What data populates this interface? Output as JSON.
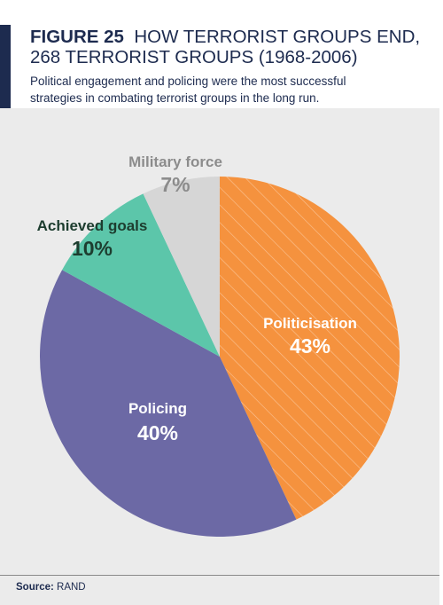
{
  "figure": {
    "label": "FIGURE 25",
    "title_line1": "HOW TERRORIST GROUPS END,",
    "title_line2": "268 TERRORIST GROUPS (1968-2006)",
    "subtitle_line1": "Political engagement and policing were the most successful",
    "subtitle_line2": "strategies in combating terrorist groups in the long run.",
    "source_label": "Source:",
    "source_value": "RAND"
  },
  "colors": {
    "header_text": "#1d2b4f",
    "politicisation": "#f5923e",
    "policing": "#6c69a5",
    "achieved_goals": "#5cc6aa",
    "military_force": "#d6d6d6",
    "panel": "#ebebeb"
  },
  "chart_data": {
    "type": "pie",
    "title": "HOW TERRORIST GROUPS END, 268 TERRORIST GROUPS (1968-2006)",
    "start": "12 o'clock",
    "direction": "clockwise",
    "slices": [
      {
        "label": "Politicisation",
        "value": 43,
        "display": "43%",
        "color": "#f5923e",
        "pattern": "diagonal-hatch",
        "label_color": "#ffffff"
      },
      {
        "label": "Policing",
        "value": 40,
        "display": "40%",
        "color": "#6c69a5",
        "pattern": "none",
        "label_color": "#ffffff"
      },
      {
        "label": "Achieved goals",
        "value": 10,
        "display": "10%",
        "color": "#5cc6aa",
        "pattern": "none",
        "label_color": "#1d3d2f"
      },
      {
        "label": "Military force",
        "value": 7,
        "display": "7%",
        "color": "#d6d6d6",
        "pattern": "none",
        "label_color": "#8c8c8c"
      }
    ]
  }
}
